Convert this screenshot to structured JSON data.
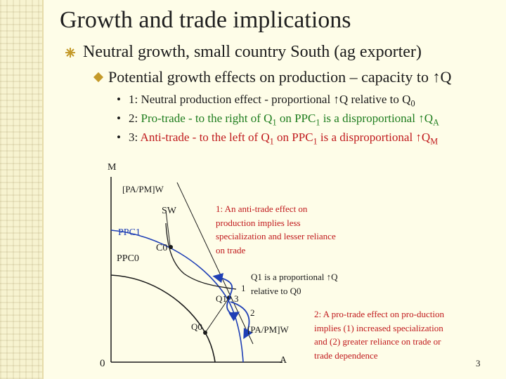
{
  "slide": {
    "title": "Growth and trade implications",
    "bullet_level1": "Neutral growth, small country South (ag exporter)",
    "bullet_level2": "Potential growth effects on production – capacity to ↑Q",
    "points": [
      {
        "bullet": "•",
        "num": "1:",
        "text_a": " Neutral production effect - proportional ↑Q relative to Q",
        "sub_a": "0",
        "color": "#1a1a1a"
      },
      {
        "bullet": "•",
        "num": "2:",
        "text_a": " Pro-trade - to the right of Q",
        "sub_a": "1",
        "text_b": " on PPC",
        "sub_b": "1",
        "text_c": " is a disproportional ↑Q",
        "sub_c": "A",
        "color": "#1e7d1e"
      },
      {
        "bullet": "•",
        "num": "3:",
        "text_a": " Anti-trade - to the left of Q",
        "sub_a": "1",
        "text_b": " on PPC",
        "sub_b": "1",
        "text_c": " is a disproportional ↑Q",
        "sub_c": "M",
        "color": "#c0191c"
      }
    ],
    "page_number": "3"
  },
  "diagram": {
    "axis_m": "M",
    "axis_a": "A",
    "origin": "0",
    "price_top": "[PA/PM]W",
    "price_bottom": "[PA/PM]W",
    "sw": "SW",
    "ppc1": "PPC1",
    "ppc0": "PPC0",
    "c0": "C0",
    "q1": "Q1",
    "q0": "Q0",
    "label_1": "1",
    "label_2": "2",
    "label_3": "3",
    "note_anti": "1: An anti-trade effect on production implies less specialization and lesser reliance on trade",
    "note_prop": "Q1 is a proportional ↑Q relative to Q0",
    "note_pro": "2: A pro-trade effect on pro-duction implies (1) increased specialization and (2) greater reliance on trade or trade dependence",
    "colors": {
      "ppc1": "#1f3fb5",
      "arrows": "#1f3fb5",
      "ppc0": "#1a1a1a",
      "notes_red": "#c0191c"
    }
  }
}
